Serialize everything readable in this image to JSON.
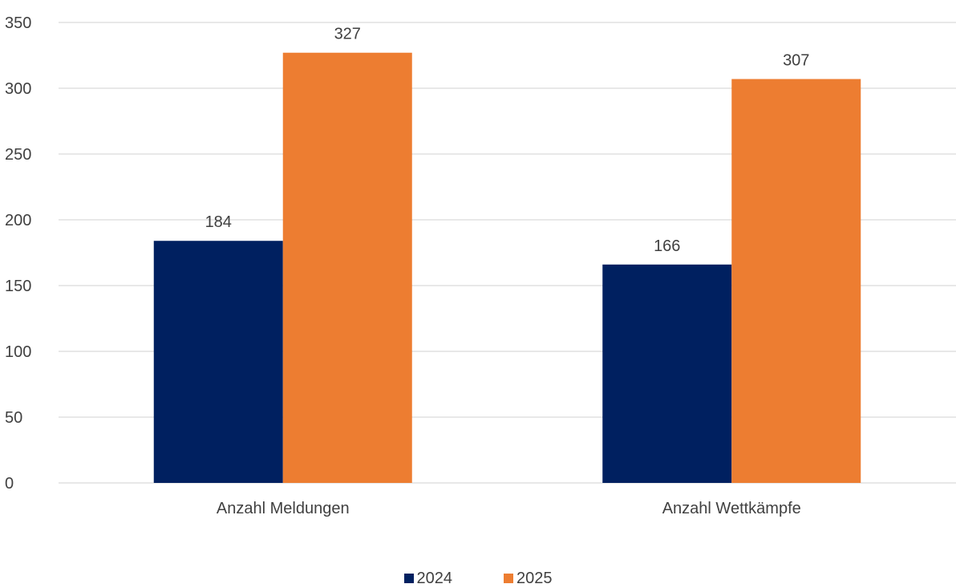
{
  "chart_data": {
    "type": "bar",
    "categories": [
      "Anzahl Meldungen",
      "Anzahl Wettkämpfe"
    ],
    "series": [
      {
        "name": "2024",
        "values": [
          184,
          166
        ],
        "color": "#002060"
      },
      {
        "name": "2025",
        "values": [
          327,
          307
        ],
        "color": "#ED7D31"
      }
    ],
    "title": "",
    "xlabel": "",
    "ylabel": "",
    "ylim": [
      0,
      350
    ],
    "yticks": [
      0,
      50,
      100,
      150,
      200,
      250,
      300,
      350
    ],
    "grid": true,
    "data_labels": true,
    "legend_position": "bottom"
  }
}
